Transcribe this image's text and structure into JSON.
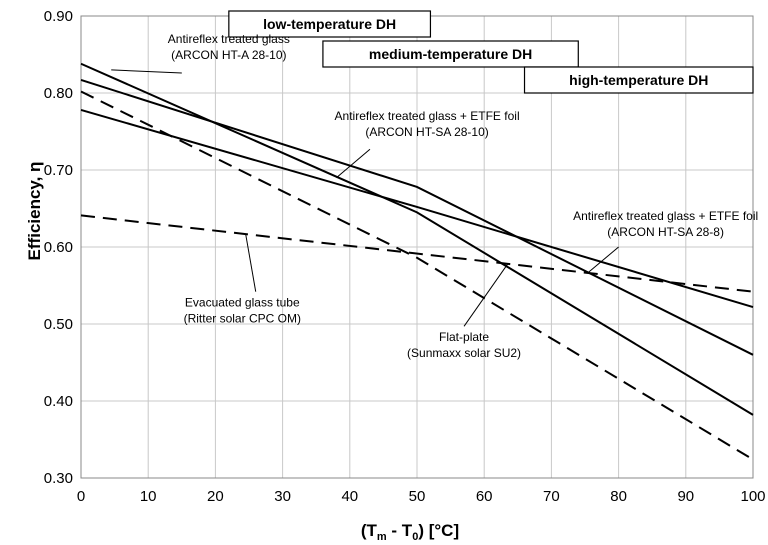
{
  "chart_data": {
    "type": "line",
    "xlabel_main": "(T",
    "xlabel_sub_m": "m",
    "xlabel_mid": " - T",
    "xlabel_sub_0": "0",
    "xlabel_tail": ") [°C]",
    "ylabel": "Efficiency, η",
    "xlim": [
      0,
      100
    ],
    "ylim": [
      0.3,
      0.9
    ],
    "x_ticks": [
      "0",
      "10",
      "20",
      "30",
      "40",
      "50",
      "60",
      "70",
      "80",
      "90",
      "100"
    ],
    "y_ticks": [
      "0.30",
      "0.40",
      "0.50",
      "0.60",
      "0.70",
      "0.80",
      "0.90"
    ],
    "grid": true,
    "series": [
      {
        "id": "arcon-ht-a-28-10",
        "style": "solid",
        "x": [
          0,
          50,
          100
        ],
        "y": [
          0.838,
          0.645,
          0.382
        ]
      },
      {
        "id": "arcon-ht-sa-28-10",
        "style": "solid",
        "x": [
          0,
          50,
          100
        ],
        "y": [
          0.817,
          0.678,
          0.46
        ]
      },
      {
        "id": "arcon-ht-sa-28-8",
        "style": "solid",
        "x": [
          0,
          50,
          100
        ],
        "y": [
          0.778,
          0.652,
          0.522
        ]
      },
      {
        "id": "ritter-cpc-om",
        "style": "dashed",
        "x": [
          0,
          100
        ],
        "y": [
          0.641,
          0.542
        ]
      },
      {
        "id": "sunmaxx-su2",
        "style": "dashed",
        "x": [
          0,
          50,
          100
        ],
        "y": [
          0.802,
          0.586,
          0.324
        ]
      }
    ],
    "bands": [
      {
        "id": "low",
        "label": "low-temperature DH",
        "x_from": 22,
        "x_to": 52
      },
      {
        "id": "medium",
        "label": "medium-temperature DH",
        "x_from": 36,
        "x_to": 74
      },
      {
        "id": "high",
        "label": "high-temperature DH",
        "x_from": 66,
        "x_to": 100
      }
    ],
    "annotations": [
      {
        "id": "arcon-ht-a",
        "lines": [
          "Antireflex treated glass",
          "(ARCON HT-A 28-10)"
        ],
        "text_x": 22,
        "text_y": 0.865,
        "leader_from": [
          15,
          0.826
        ],
        "leader_to": [
          4.5,
          0.83
        ]
      },
      {
        "id": "arcon-ht-sa-28-10",
        "lines": [
          "Antireflex treated glass + ETFE foil",
          "(ARCON HT-SA 28-10)"
        ],
        "text_x": 51.5,
        "text_y": 0.765,
        "leader_from": [
          43,
          0.727
        ],
        "leader_to": [
          38,
          0.69
        ]
      },
      {
        "id": "arcon-ht-sa-28-8",
        "lines": [
          "Antireflex treated glass + ETFE foil",
          "(ARCON HT-SA 28-8)"
        ],
        "text_x": 87,
        "text_y": 0.635,
        "leader_from": [
          80,
          0.6
        ],
        "leader_to": [
          75.5,
          0.567
        ]
      },
      {
        "id": "ritter",
        "lines": [
          "Evacuated glass tube",
          "(Ritter solar CPC OM)"
        ],
        "text_x": 24,
        "text_y": 0.523,
        "leader_from": [
          26,
          0.542
        ],
        "leader_to": [
          24.5,
          0.617
        ]
      },
      {
        "id": "sunmaxx",
        "lines": [
          "Flat-plate",
          "(Sunmaxx solar SU2)"
        ],
        "text_x": 57,
        "text_y": 0.478,
        "leader_from": [
          57,
          0.497
        ],
        "leader_to": [
          63.5,
          0.578
        ]
      }
    ]
  }
}
